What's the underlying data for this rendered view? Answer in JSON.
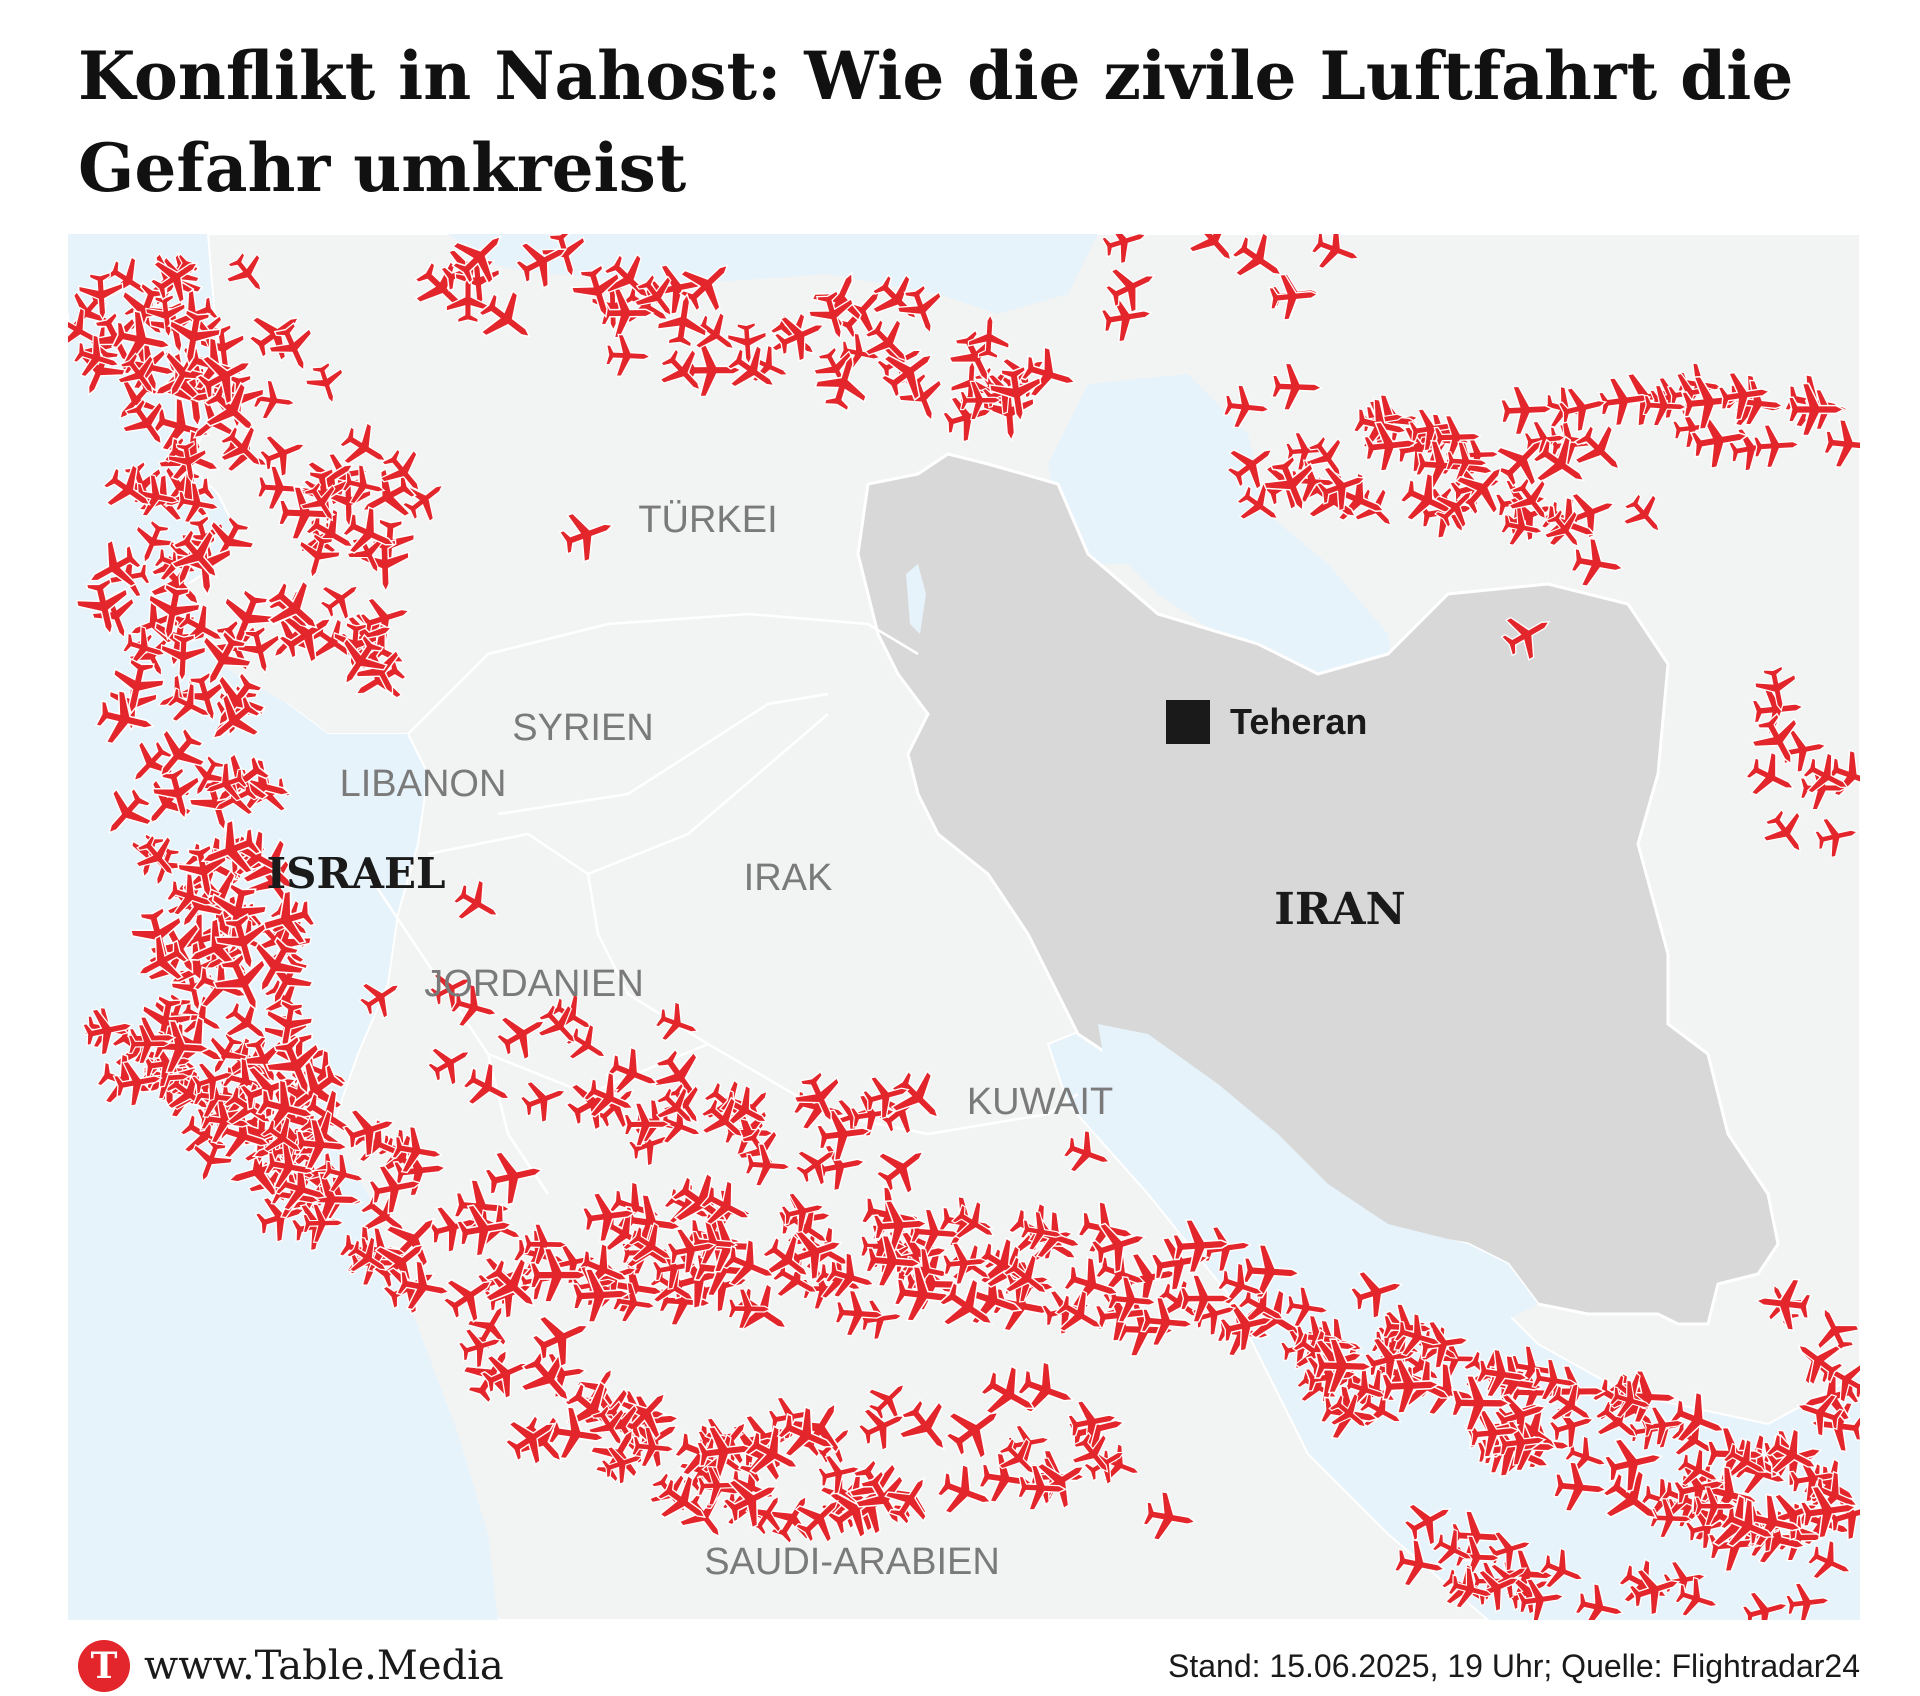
{
  "title": "Konflikt in Nahost: Wie die zivile Luftfahrt die Gefahr umkreist",
  "map": {
    "labels": {
      "tuerkei": "TÜRKEI",
      "syrien": "SYRIEN",
      "libanon": "LIBANON",
      "israel": "ISRAEL",
      "irak": "IRAK",
      "jordanien": "JORDANIEN",
      "kuwait": "KUWAIT",
      "iran": "IRAN",
      "saudi": "SAUDI-ARABIEN",
      "teheran": "Teheran"
    },
    "colors": {
      "water": "#e6f3fb",
      "land": "#f2f3f3",
      "iran": "#d8d8d8",
      "border": "#ffffff",
      "plane": "#e3262b",
      "label": "#7a7a7a",
      "label_bold": "#1a1a1a",
      "city_marker": "#1a1a1a"
    },
    "marker_icon": "airplane-icon",
    "city_icon": "square-marker-icon"
  },
  "footer": {
    "logo_letter": "T",
    "site": "www.Table.Media",
    "source": "Stand: 15.06.2025, 19 Uhr; Quelle: Flightradar24"
  }
}
